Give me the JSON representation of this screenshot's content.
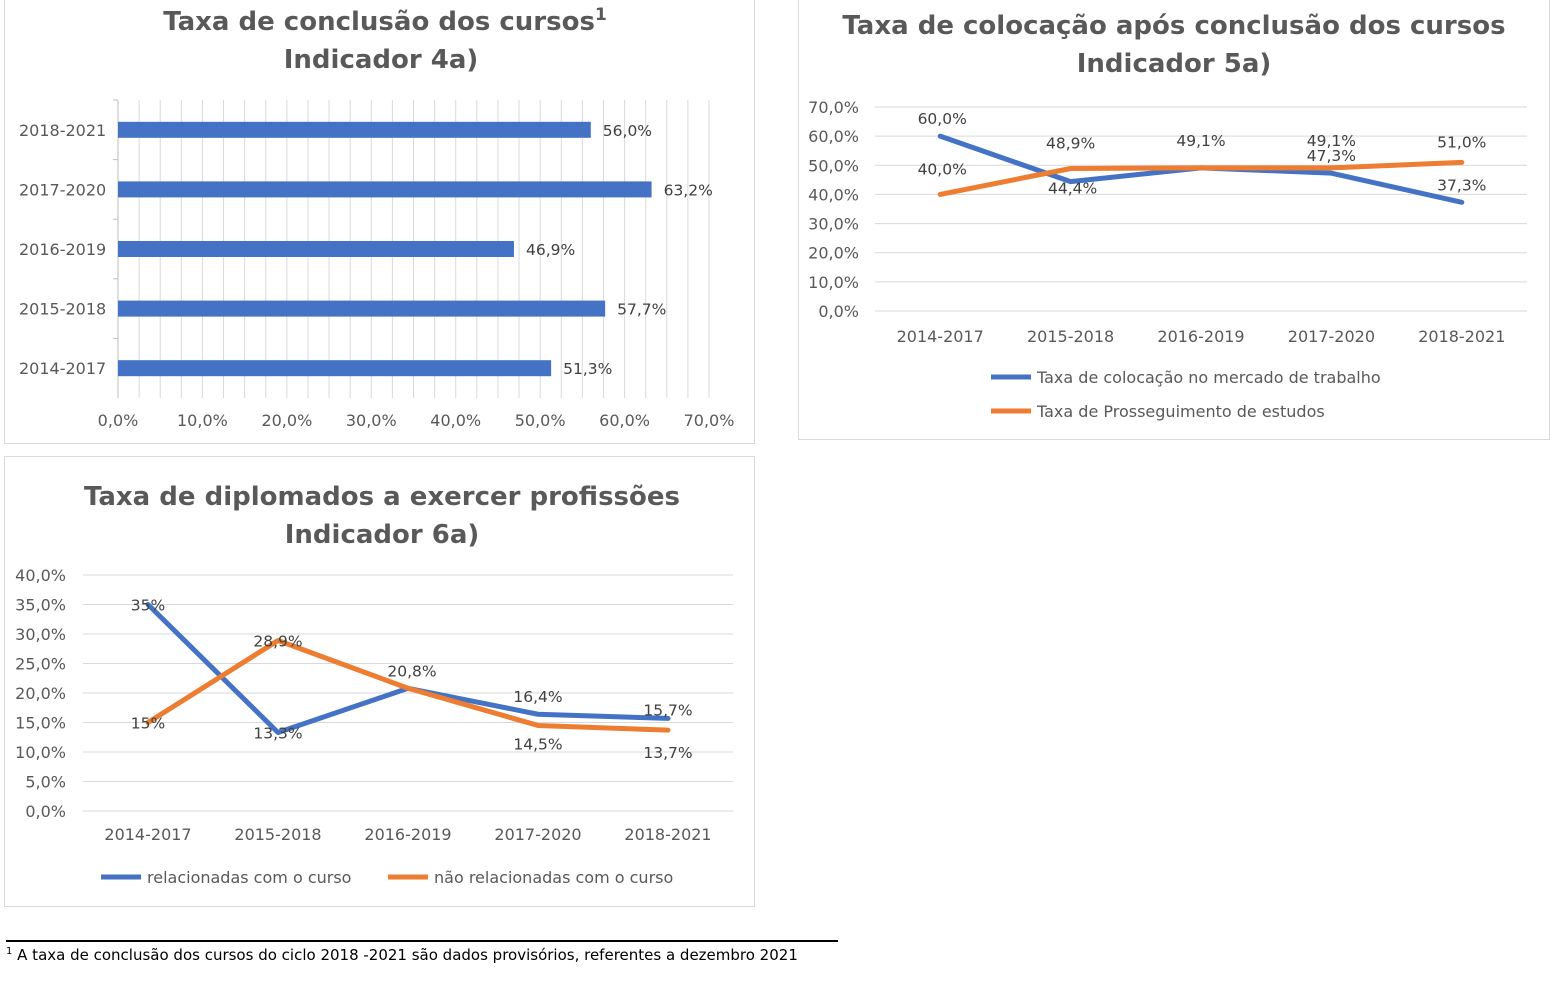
{
  "charts": {
    "completion": {
      "title_line1": "Taxa de conclusão dos cursos",
      "title_sup": "1",
      "title_line2": "Indicador 4a)"
    },
    "placement": {
      "title_line1": "Taxa de colocação após conclusão dos cursos",
      "title_line2": "Indicador 5a)"
    },
    "professions": {
      "title_line1": "Taxa de diplomados a exercer profissões",
      "title_line2": "Indicador 6a)"
    }
  },
  "colors": {
    "blue": "#4472C4",
    "orange": "#ED7D31",
    "grid": "#d9d9d9",
    "text": "#595959"
  },
  "chart_data": [
    {
      "id": "completion",
      "type": "bar",
      "orientation": "horizontal",
      "title": "Taxa de conclusão dos cursos¹ Indicador 4a)",
      "categories": [
        "2018-2021",
        "2017-2020",
        "2016-2019",
        "2015-2018",
        "2014-2017"
      ],
      "values": [
        56.0,
        63.2,
        46.9,
        57.7,
        51.3
      ],
      "data_labels": [
        "56,0%",
        "63,2%",
        "46,9%",
        "57,7%",
        "51,3%"
      ],
      "xlim": [
        0,
        70
      ],
      "x_ticks": [
        "0,0%",
        "10,0%",
        "20,0%",
        "30,0%",
        "40,0%",
        "50,0%",
        "60,0%",
        "70,0%"
      ],
      "grid": true,
      "legend": "none"
    },
    {
      "id": "placement",
      "type": "line",
      "title": "Taxa de colocação após conclusão dos cursos Indicador 5a)",
      "categories": [
        "2014-2017",
        "2015-2018",
        "2016-2019",
        "2017-2020",
        "2018-2021"
      ],
      "ylim": [
        0,
        70
      ],
      "y_ticks": [
        "0,0%",
        "10,0%",
        "20,0%",
        "30,0%",
        "40,0%",
        "50,0%",
        "60,0%",
        "70,0%"
      ],
      "series": [
        {
          "name": "Taxa de colocação no mercado de trabalho",
          "values": [
            60.0,
            44.4,
            49.1,
            47.3,
            37.3
          ],
          "labels": [
            "60,0%",
            "44,4%",
            "49,1%",
            "47,3%",
            "37,3%"
          ]
        },
        {
          "name": "Taxa de Prosseguimento de estudos",
          "values": [
            40.0,
            48.9,
            49.1,
            49.1,
            51.0
          ],
          "labels": [
            "40,0%",
            "48,9%",
            "",
            "49,1%",
            "51,0%"
          ]
        }
      ],
      "grid": true,
      "legend": "bottom"
    },
    {
      "id": "professions",
      "type": "line",
      "title": "Taxa de diplomados a exercer profissões Indicador 6a)",
      "categories": [
        "2014-2017",
        "2015-2018",
        "2016-2019",
        "2017-2020",
        "2018-2021"
      ],
      "ylim": [
        0,
        40
      ],
      "y_ticks": [
        "0,0%",
        "5,0%",
        "10,0%",
        "15,0%",
        "20,0%",
        "25,0%",
        "30,0%",
        "35,0%",
        "40,0%"
      ],
      "series": [
        {
          "name": "relacionadas  com o curso",
          "values": [
            35.0,
            13.3,
            20.8,
            16.4,
            15.7
          ],
          "labels": [
            "35%",
            "13,3%",
            "20,8%",
            "16,4%",
            "15,7%"
          ]
        },
        {
          "name": "não relacionadas com o curso",
          "values": [
            15.0,
            28.9,
            20.8,
            14.5,
            13.7
          ],
          "labels": [
            "15%",
            "28,9%",
            "",
            "14,5%",
            "13,7%"
          ]
        }
      ],
      "grid": true,
      "legend": "bottom"
    }
  ],
  "footnote": {
    "marker": "1",
    "text": "A taxa de conclusão dos cursos do ciclo 2018 -2021 são dados provisórios, referentes a dezembro 2021"
  }
}
